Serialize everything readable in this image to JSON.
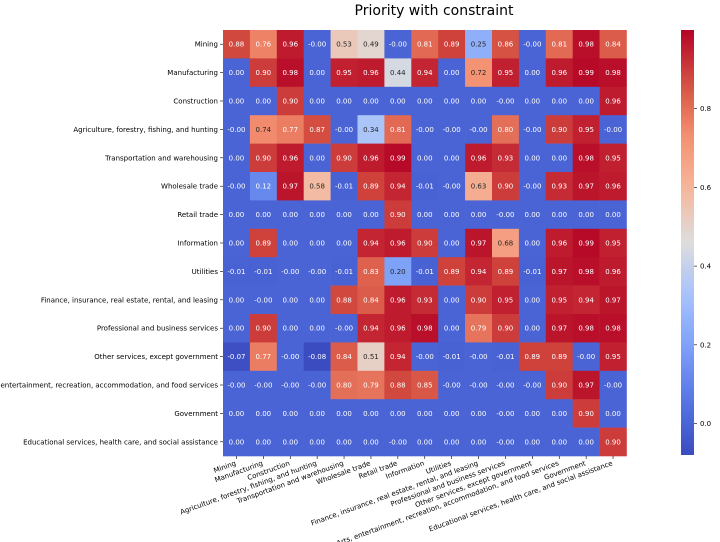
{
  "chart_data": {
    "type": "heatmap",
    "title": "Priority with constraint",
    "xlabel": "",
    "ylabel": "",
    "categories": [
      "Mining",
      "Manufacturing",
      "Construction",
      "Agriculture, forestry, fishing, and hunting",
      "Transportation and warehousing",
      "Wholesale trade",
      "Retail trade",
      "Information",
      "Utilities",
      "Finance, insurance, real estate, rental, and leasing",
      "Professional and business services",
      "Other services, except government",
      "Arts, entertainment, recreation, accommodation, and food services",
      "Government",
      "Educational services, health care, and social assistance"
    ],
    "value_labels": [
      [
        "0.88",
        "0.76",
        "0.96",
        "-0.00",
        "0.53",
        "0.49",
        "-0.00",
        "0.81",
        "0.89",
        "0.25",
        "0.86",
        "-0.00",
        "0.81",
        "0.98",
        "0.84"
      ],
      [
        "0.00",
        "0.90",
        "0.98",
        "0.00",
        "0.95",
        "0.96",
        "0.44",
        "0.94",
        "0.00",
        "0.72",
        "0.95",
        "0.00",
        "0.96",
        "0.99",
        "0.98"
      ],
      [
        "0.00",
        "0.00",
        "0.90",
        "0.00",
        "0.00",
        "0.00",
        "0.00",
        "0.00",
        "0.00",
        "0.00",
        "-0.00",
        "0.00",
        "0.00",
        "0.00",
        "0.96"
      ],
      [
        "-0.00",
        "0.74",
        "0.77",
        "0.87",
        "-0.00",
        "0.34",
        "0.81",
        "-0.00",
        "-0.00",
        "-0.00",
        "0.80",
        "-0.00",
        "0.90",
        "0.95",
        "-0.00"
      ],
      [
        "0.00",
        "0.90",
        "0.96",
        "0.00",
        "0.90",
        "0.96",
        "0.99",
        "0.00",
        "0.00",
        "0.96",
        "0.93",
        "0.00",
        "0.00",
        "0.98",
        "0.95"
      ],
      [
        "-0.00",
        "0.12",
        "0.97",
        "0.58",
        "-0.01",
        "0.89",
        "0.94",
        "-0.01",
        "-0.00",
        "0.63",
        "0.90",
        "-0.00",
        "0.93",
        "0.97",
        "0.96"
      ],
      [
        "0.00",
        "0.00",
        "0.00",
        "0.00",
        "0.00",
        "0.00",
        "0.90",
        "0.00",
        "0.00",
        "0.00",
        "-0.00",
        "0.00",
        "0.00",
        "0.00",
        "0.00"
      ],
      [
        "0.00",
        "0.89",
        "0.00",
        "0.00",
        "0.00",
        "0.94",
        "0.96",
        "0.90",
        "0.00",
        "0.97",
        "0.68",
        "0.00",
        "0.96",
        "0.99",
        "0.95"
      ],
      [
        "-0.01",
        "-0.01",
        "-0.00",
        "-0.00",
        "-0.01",
        "0.83",
        "0.20",
        "-0.01",
        "0.89",
        "0.94",
        "0.89",
        "-0.01",
        "0.97",
        "0.98",
        "0.96"
      ],
      [
        "0.00",
        "-0.00",
        "0.00",
        "0.00",
        "0.88",
        "0.84",
        "0.96",
        "0.93",
        "0.00",
        "0.90",
        "0.95",
        "0.00",
        "0.95",
        "0.94",
        "0.97"
      ],
      [
        "0.00",
        "0.90",
        "0.00",
        "0.00",
        "-0.00",
        "0.94",
        "0.96",
        "0.98",
        "0.00",
        "0.79",
        "0.90",
        "0.00",
        "0.97",
        "0.98",
        "0.98"
      ],
      [
        "-0.07",
        "0.77",
        "-0.00",
        "-0.08",
        "0.84",
        "0.51",
        "0.94",
        "-0.00",
        "-0.01",
        "-0.00",
        "-0.01",
        "0.89",
        "0.89",
        "-0.00",
        "0.95"
      ],
      [
        "-0.00",
        "-0.00",
        "-0.00",
        "-0.00",
        "0.80",
        "0.79",
        "0.88",
        "0.85",
        "-0.00",
        "-0.00",
        "-0.00",
        "-0.00",
        "0.90",
        "0.97",
        "-0.00"
      ],
      [
        "0.00",
        "0.00",
        "0.00",
        "0.00",
        "0.00",
        "0.00",
        "0.00",
        "0.00",
        "0.00",
        "0.00",
        "-0.00",
        "0.00",
        "0.00",
        "0.90",
        "0.00"
      ],
      [
        "0.00",
        "0.00",
        "0.00",
        "0.00",
        "0.00",
        "0.00",
        "-0.00",
        "0.00",
        "0.00",
        "0.00",
        "-0.00",
        "0.00",
        "0.00",
        "0.00",
        "0.90"
      ]
    ],
    "color_range": [
      -0.08,
      1.0
    ],
    "colormap": "coolwarm",
    "colorbar_ticks": [
      "0.0",
      "0.2",
      "0.4",
      "0.6",
      "0.8"
    ],
    "colorbar_tick_values": [
      0.0,
      0.2,
      0.4,
      0.6,
      0.8
    ],
    "grid": false,
    "colorbar_position": "right"
  }
}
